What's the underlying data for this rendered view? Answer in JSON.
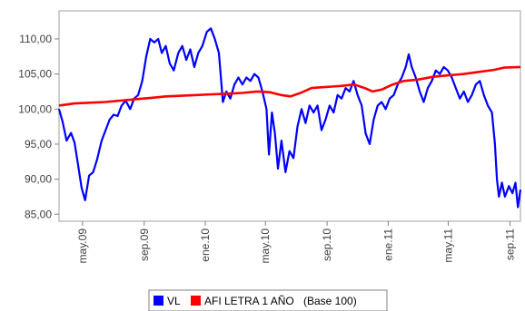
{
  "chart_data": {
    "type": "line",
    "title": "",
    "xlabel": "",
    "ylabel": "",
    "ylim": [
      84,
      114
    ],
    "x_range": [
      "2009-03-15",
      "2011-09-22"
    ],
    "grid": false,
    "legend_placement": "bottom-center",
    "y_ticks": [
      85,
      90,
      95,
      100,
      105,
      110
    ],
    "y_tick_labels": [
      "85,00",
      "90,00",
      "95,00",
      "100,00",
      "105,00",
      "110,00"
    ],
    "x_ticks": [
      "2009-05-01",
      "2009-09-01",
      "2010-01-01",
      "2010-05-01",
      "2010-09-01",
      "2011-01-01",
      "2011-05-01",
      "2011-09-01"
    ],
    "x_tick_labels": [
      "may.09",
      "sep.09",
      "ene.10",
      "may.10",
      "sep.10",
      "ene.11",
      "may.11",
      "sep.11"
    ],
    "legend_note": "(Base 100)",
    "series": [
      {
        "name": "VL",
        "color": "#0000ff",
        "points": [
          [
            "2009-03-15",
            100.0
          ],
          [
            "2009-03-22",
            98.2
          ],
          [
            "2009-03-30",
            95.5
          ],
          [
            "2009-04-08",
            96.6
          ],
          [
            "2009-04-15",
            95.2
          ],
          [
            "2009-04-22",
            92.0
          ],
          [
            "2009-04-29",
            88.8
          ],
          [
            "2009-05-06",
            87.0
          ],
          [
            "2009-05-14",
            90.5
          ],
          [
            "2009-05-22",
            91.0
          ],
          [
            "2009-05-30",
            92.8
          ],
          [
            "2009-06-08",
            95.5
          ],
          [
            "2009-06-16",
            97.0
          ],
          [
            "2009-06-24",
            98.5
          ],
          [
            "2009-07-02",
            99.2
          ],
          [
            "2009-07-10",
            99.0
          ],
          [
            "2009-07-18",
            100.5
          ],
          [
            "2009-07-26",
            101.2
          ],
          [
            "2009-08-04",
            100.0
          ],
          [
            "2009-08-12",
            101.5
          ],
          [
            "2009-08-20",
            102.0
          ],
          [
            "2009-08-28",
            104.0
          ],
          [
            "2009-09-05",
            107.5
          ],
          [
            "2009-09-13",
            110.0
          ],
          [
            "2009-09-21",
            109.5
          ],
          [
            "2009-09-29",
            110.0
          ],
          [
            "2009-10-06",
            108.0
          ],
          [
            "2009-10-14",
            109.0
          ],
          [
            "2009-10-22",
            106.5
          ],
          [
            "2009-10-30",
            105.5
          ],
          [
            "2009-11-08",
            108.0
          ],
          [
            "2009-11-16",
            109.0
          ],
          [
            "2009-11-24",
            107.0
          ],
          [
            "2009-12-02",
            108.5
          ],
          [
            "2009-12-10",
            106.0
          ],
          [
            "2009-12-18",
            108.0
          ],
          [
            "2009-12-26",
            109.0
          ],
          [
            "2010-01-04",
            111.0
          ],
          [
            "2010-01-12",
            111.5
          ],
          [
            "2010-01-20",
            110.0
          ],
          [
            "2010-01-28",
            108.0
          ],
          [
            "2010-02-05",
            101.0
          ],
          [
            "2010-02-12",
            102.5
          ],
          [
            "2010-02-20",
            101.5
          ],
          [
            "2010-02-28",
            103.5
          ],
          [
            "2010-03-08",
            104.5
          ],
          [
            "2010-03-16",
            103.5
          ],
          [
            "2010-03-24",
            104.5
          ],
          [
            "2010-04-01",
            104.0
          ],
          [
            "2010-04-09",
            105.0
          ],
          [
            "2010-04-17",
            104.5
          ],
          [
            "2010-04-25",
            102.5
          ],
          [
            "2010-05-03",
            100.0
          ],
          [
            "2010-05-08",
            93.5
          ],
          [
            "2010-05-14",
            99.5
          ],
          [
            "2010-05-20",
            96.5
          ],
          [
            "2010-05-26",
            91.5
          ],
          [
            "2010-06-02",
            95.5
          ],
          [
            "2010-06-10",
            91.0
          ],
          [
            "2010-06-18",
            94.0
          ],
          [
            "2010-06-26",
            93.0
          ],
          [
            "2010-07-04",
            97.5
          ],
          [
            "2010-07-12",
            100.0
          ],
          [
            "2010-07-20",
            98.0
          ],
          [
            "2010-07-28",
            100.5
          ],
          [
            "2010-08-05",
            99.5
          ],
          [
            "2010-08-13",
            100.5
          ],
          [
            "2010-08-21",
            97.0
          ],
          [
            "2010-08-29",
            98.5
          ],
          [
            "2010-09-06",
            100.5
          ],
          [
            "2010-09-14",
            99.5
          ],
          [
            "2010-09-22",
            102.0
          ],
          [
            "2010-09-30",
            101.5
          ],
          [
            "2010-10-08",
            103.0
          ],
          [
            "2010-10-16",
            102.5
          ],
          [
            "2010-10-24",
            104.0
          ],
          [
            "2010-11-01",
            102.0
          ],
          [
            "2010-11-09",
            100.5
          ],
          [
            "2010-11-17",
            96.5
          ],
          [
            "2010-11-25",
            95.0
          ],
          [
            "2010-12-03",
            98.5
          ],
          [
            "2010-12-11",
            100.5
          ],
          [
            "2010-12-19",
            101.0
          ],
          [
            "2010-12-27",
            100.0
          ],
          [
            "2011-01-04",
            101.5
          ],
          [
            "2011-01-12",
            102.0
          ],
          [
            "2011-01-20",
            103.5
          ],
          [
            "2011-01-28",
            104.5
          ],
          [
            "2011-02-05",
            106.0
          ],
          [
            "2011-02-11",
            107.8
          ],
          [
            "2011-02-17",
            106.0
          ],
          [
            "2011-02-25",
            104.5
          ],
          [
            "2011-03-05",
            102.5
          ],
          [
            "2011-03-13",
            101.0
          ],
          [
            "2011-03-21",
            103.0
          ],
          [
            "2011-03-29",
            104.0
          ],
          [
            "2011-04-06",
            105.5
          ],
          [
            "2011-04-14",
            105.0
          ],
          [
            "2011-04-22",
            106.0
          ],
          [
            "2011-04-30",
            105.5
          ],
          [
            "2011-05-08",
            104.5
          ],
          [
            "2011-05-16",
            103.0
          ],
          [
            "2011-05-24",
            101.5
          ],
          [
            "2011-06-01",
            102.5
          ],
          [
            "2011-06-09",
            101.0
          ],
          [
            "2011-06-17",
            102.0
          ],
          [
            "2011-06-25",
            103.5
          ],
          [
            "2011-07-03",
            104.0
          ],
          [
            "2011-07-11",
            102.0
          ],
          [
            "2011-07-19",
            100.5
          ],
          [
            "2011-07-27",
            99.5
          ],
          [
            "2011-08-02",
            95.0
          ],
          [
            "2011-08-06",
            90.0
          ],
          [
            "2011-08-10",
            87.5
          ],
          [
            "2011-08-16",
            89.5
          ],
          [
            "2011-08-22",
            87.5
          ],
          [
            "2011-08-30",
            89.0
          ],
          [
            "2011-09-06",
            88.0
          ],
          [
            "2011-09-12",
            89.5
          ],
          [
            "2011-09-17",
            86.0
          ],
          [
            "2011-09-22",
            88.5
          ]
        ]
      },
      {
        "name": "AFI LETRA 1 AÑO",
        "color": "#ff0000",
        "points": [
          [
            "2009-03-15",
            100.5
          ],
          [
            "2009-04-15",
            100.8
          ],
          [
            "2009-05-15",
            100.9
          ],
          [
            "2009-06-15",
            101.0
          ],
          [
            "2009-07-15",
            101.2
          ],
          [
            "2009-08-15",
            101.4
          ],
          [
            "2009-09-15",
            101.6
          ],
          [
            "2009-10-15",
            101.8
          ],
          [
            "2009-11-15",
            101.9
          ],
          [
            "2009-12-15",
            102.0
          ],
          [
            "2010-01-15",
            102.1
          ],
          [
            "2010-02-15",
            102.2
          ],
          [
            "2010-03-15",
            102.3
          ],
          [
            "2010-04-15",
            102.5
          ],
          [
            "2010-05-10",
            102.4
          ],
          [
            "2010-06-01",
            102.0
          ],
          [
            "2010-06-20",
            101.8
          ],
          [
            "2010-07-10",
            102.3
          ],
          [
            "2010-08-01",
            103.0
          ],
          [
            "2010-08-20",
            103.1
          ],
          [
            "2010-09-10",
            103.2
          ],
          [
            "2010-10-01",
            103.3
          ],
          [
            "2010-10-25",
            103.5
          ],
          [
            "2010-11-15",
            103.0
          ],
          [
            "2010-12-01",
            102.5
          ],
          [
            "2010-12-20",
            102.8
          ],
          [
            "2011-01-10",
            103.5
          ],
          [
            "2011-02-01",
            104.0
          ],
          [
            "2011-03-01",
            104.2
          ],
          [
            "2011-04-01",
            104.6
          ],
          [
            "2011-05-01",
            104.8
          ],
          [
            "2011-06-01",
            105.0
          ],
          [
            "2011-07-01",
            105.3
          ],
          [
            "2011-08-01",
            105.6
          ],
          [
            "2011-08-20",
            105.9
          ],
          [
            "2011-09-22",
            106.0
          ]
        ]
      }
    ]
  }
}
